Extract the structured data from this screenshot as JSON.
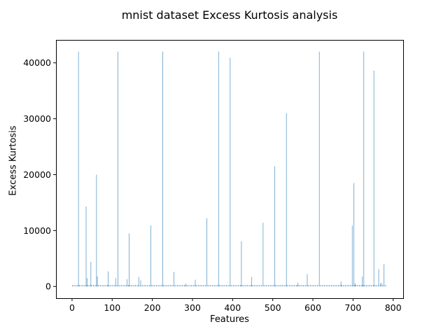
{
  "chart_data": {
    "type": "bar",
    "title": "mnist dataset Excess Kurtosis analysis",
    "xlabel": "Features",
    "ylabel": "Excess Kurtosis",
    "xlim": [
      -40,
      825
    ],
    "ylim": [
      -2100,
      44100
    ],
    "xticks": [
      0,
      100,
      200,
      300,
      400,
      500,
      600,
      700,
      800
    ],
    "yticks": [
      0,
      10000,
      20000,
      30000,
      40000
    ],
    "grid": false,
    "bar_color": "#1f77b4",
    "baseline_value": 120,
    "baseline_range": [
      0,
      783
    ],
    "bars": [
      {
        "x": 16,
        "y": 42000
      },
      {
        "x": 35,
        "y": 14300
      },
      {
        "x": 38,
        "y": 1500
      },
      {
        "x": 47,
        "y": 4400
      },
      {
        "x": 61,
        "y": 20000
      },
      {
        "x": 63,
        "y": 1800
      },
      {
        "x": 90,
        "y": 2700
      },
      {
        "x": 109,
        "y": 1500
      },
      {
        "x": 114,
        "y": 42000
      },
      {
        "x": 137,
        "y": 1300
      },
      {
        "x": 142,
        "y": 9500
      },
      {
        "x": 166,
        "y": 1700
      },
      {
        "x": 171,
        "y": 1100
      },
      {
        "x": 196,
        "y": 10900
      },
      {
        "x": 226,
        "y": 42000
      },
      {
        "x": 254,
        "y": 2600
      },
      {
        "x": 283,
        "y": 500
      },
      {
        "x": 307,
        "y": 1200
      },
      {
        "x": 336,
        "y": 12200
      },
      {
        "x": 365,
        "y": 42000
      },
      {
        "x": 394,
        "y": 40900
      },
      {
        "x": 422,
        "y": 8100
      },
      {
        "x": 447,
        "y": 1700
      },
      {
        "x": 476,
        "y": 11400
      },
      {
        "x": 505,
        "y": 21500
      },
      {
        "x": 534,
        "y": 31000
      },
      {
        "x": 562,
        "y": 700
      },
      {
        "x": 586,
        "y": 2200
      },
      {
        "x": 616,
        "y": 42000
      },
      {
        "x": 670,
        "y": 900
      },
      {
        "x": 698,
        "y": 10900
      },
      {
        "x": 702,
        "y": 18500
      },
      {
        "x": 705,
        "y": 600
      },
      {
        "x": 723,
        "y": 1800
      },
      {
        "x": 727,
        "y": 42000
      },
      {
        "x": 752,
        "y": 38600
      },
      {
        "x": 764,
        "y": 3100
      },
      {
        "x": 768,
        "y": 600
      },
      {
        "x": 772,
        "y": 600
      },
      {
        "x": 777,
        "y": 4000
      }
    ]
  }
}
